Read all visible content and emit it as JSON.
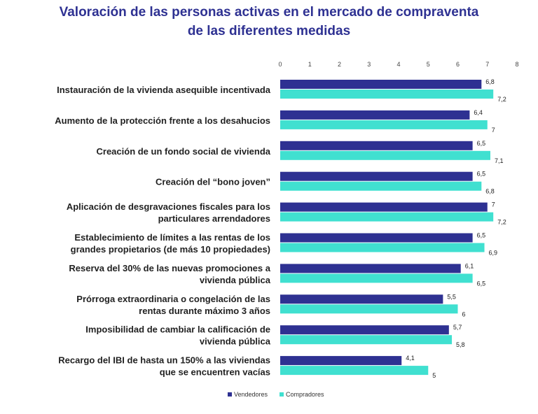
{
  "chart_data": {
    "type": "bar",
    "orientation": "horizontal",
    "title": [
      "Valoración de las personas activas en el mercado de compraventa",
      "de las diferentes medidas"
    ],
    "categories": [
      [
        "Instauración de la vivienda asequible incentivada"
      ],
      [
        "Aumento de la protección frente a los desahucios"
      ],
      [
        "Creación de un fondo social de vivienda"
      ],
      [
        "Creación del “bono joven”"
      ],
      [
        "Aplicación de desgravaciones fiscales para los",
        "particulares arrendadores"
      ],
      [
        "Establecimiento de límites a las rentas de los",
        "grandes propietarios (de más 10 propiedades)"
      ],
      [
        "Reserva del 30% de las nuevas promociones a",
        "vivienda pública"
      ],
      [
        "Prórroga extraordinaria o congelación de las",
        "rentas durante máximo 3 años"
      ],
      [
        "Imposibilidad de cambiar la calificación de",
        "vivienda pública"
      ],
      [
        "Recargo del IBI de hasta un 150% a las viviendas",
        "que se encuentren vacías"
      ]
    ],
    "series": [
      {
        "name": "Vendedores",
        "color": "#2E3192",
        "values": [
          6.8,
          6.4,
          6.5,
          6.5,
          7,
          6.5,
          6.1,
          5.5,
          5.7,
          4.1
        ],
        "labels": [
          "6,8",
          "6,4",
          "6,5",
          "6,5",
          "7",
          "6,5",
          "6,1",
          "5,5",
          "5,7",
          "4,1"
        ]
      },
      {
        "name": "Compradores",
        "color": "#40E0D0",
        "values": [
          7.2,
          7,
          7.1,
          6.8,
          7.2,
          6.9,
          6.5,
          6,
          5.8,
          5
        ],
        "labels": [
          "7,2",
          "7",
          "7,1",
          "6,8",
          "7,2",
          "6,9",
          "6,5",
          "6",
          "5,8",
          "5"
        ]
      }
    ],
    "xlim": [
      0,
      8
    ],
    "xticks": [
      "0",
      "1",
      "2",
      "3",
      "4",
      "5",
      "6",
      "7",
      "8"
    ],
    "x_axis_position": "top",
    "grid": false,
    "legend_position": "bottom"
  }
}
